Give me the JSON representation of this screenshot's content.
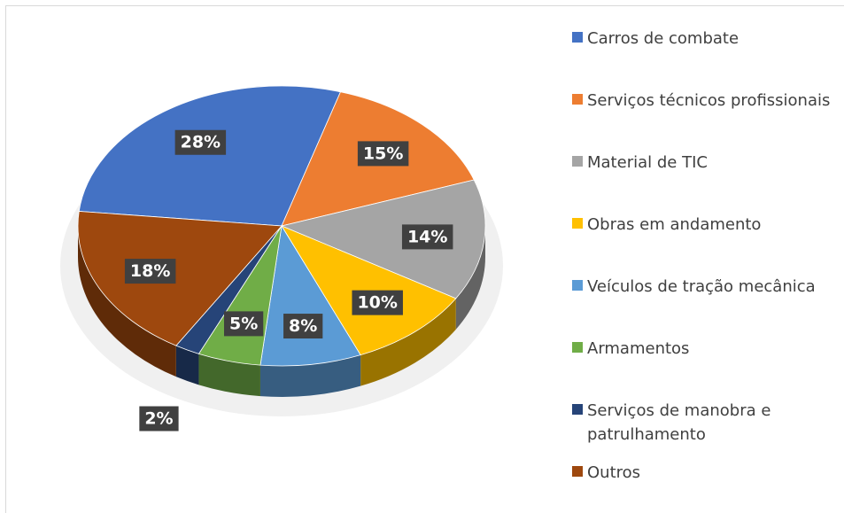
{
  "chart_data": {
    "type": "pie",
    "categories": [
      "Carros de combate",
      "Serviços técnicos profissionais",
      "Material de TIC",
      "Obras em andamento",
      "Veículos de tração mecânica",
      "Armamentos",
      "Serviços de manobra e patrulhamento",
      "Outros"
    ],
    "values": [
      28,
      15,
      14,
      10,
      8,
      5,
      2,
      18
    ],
    "value_labels": [
      "28%",
      "15%",
      "14%",
      "10%",
      "8%",
      "5%",
      "2%",
      "18%"
    ],
    "colors": [
      "#4472c4",
      "#ed7d31",
      "#a5a5a5",
      "#ffc000",
      "#5b9bd5",
      "#70ad47",
      "#264478",
      "#9e480e"
    ],
    "legend": "right"
  }
}
